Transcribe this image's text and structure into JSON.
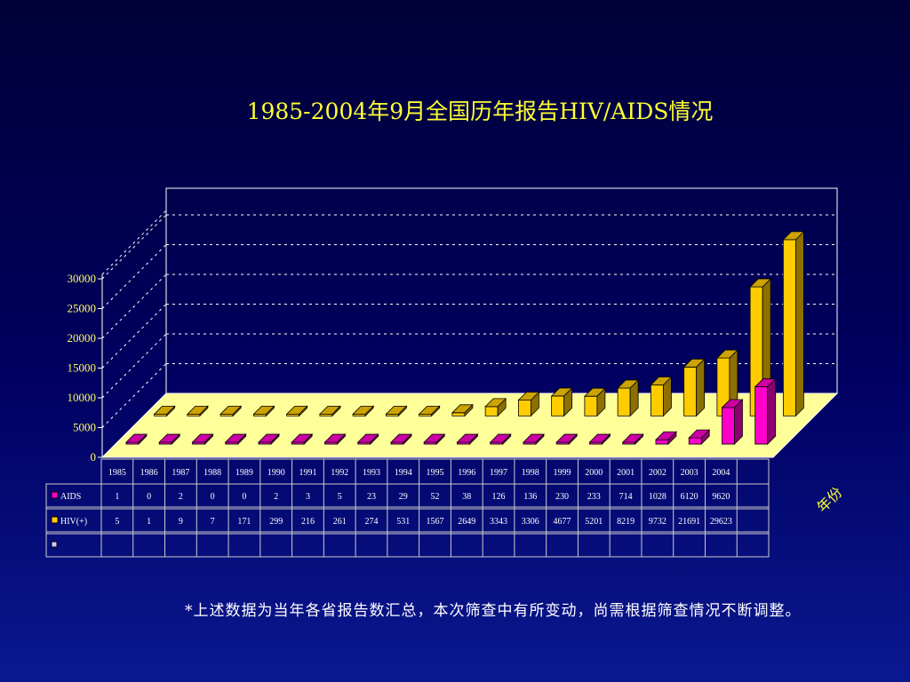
{
  "title": "1985-2004年9月全国历年报告HIV/AIDS情况",
  "footnote": "*上述数据为当年各省报告数汇总，本次筛查中有所变动，尚需根据筛查情况不断调整。",
  "chart_data": {
    "type": "bar",
    "subtype": "3d-clustered-with-data-table",
    "title": "1985-2004年9月全国历年报告HIV/AIDS情况",
    "xlabel": "年份",
    "ylabel": "",
    "ylim": [
      0,
      30000
    ],
    "yticks": [
      0,
      5000,
      10000,
      15000,
      20000,
      25000,
      30000
    ],
    "categories": [
      "1985",
      "1986",
      "1987",
      "1988",
      "1989",
      "1990",
      "1991",
      "1992",
      "1993",
      "1994",
      "1995",
      "1996",
      "1997",
      "1998",
      "1999",
      "2000",
      "2001",
      "2002",
      "2003",
      "2004"
    ],
    "series": [
      {
        "name": "AIDS",
        "color": "#ff00cc",
        "values": [
          1,
          0,
          2,
          0,
          0,
          2,
          3,
          5,
          23,
          29,
          52,
          38,
          126,
          136,
          230,
          233,
          714,
          1028,
          6120,
          9620
        ]
      },
      {
        "name": "HIV(+)",
        "color": "#ffcc00",
        "values": [
          5,
          1,
          9,
          7,
          171,
          299,
          216,
          261,
          274,
          531,
          1567,
          2649,
          3343,
          3306,
          4677,
          5201,
          8219,
          9732,
          21691,
          29623
        ]
      }
    ],
    "grid": true,
    "legend": "data-table-left",
    "colors": {
      "wall_line": "#ffffff",
      "floor": "#ffff99",
      "tick_text": "#ffff66"
    }
  }
}
